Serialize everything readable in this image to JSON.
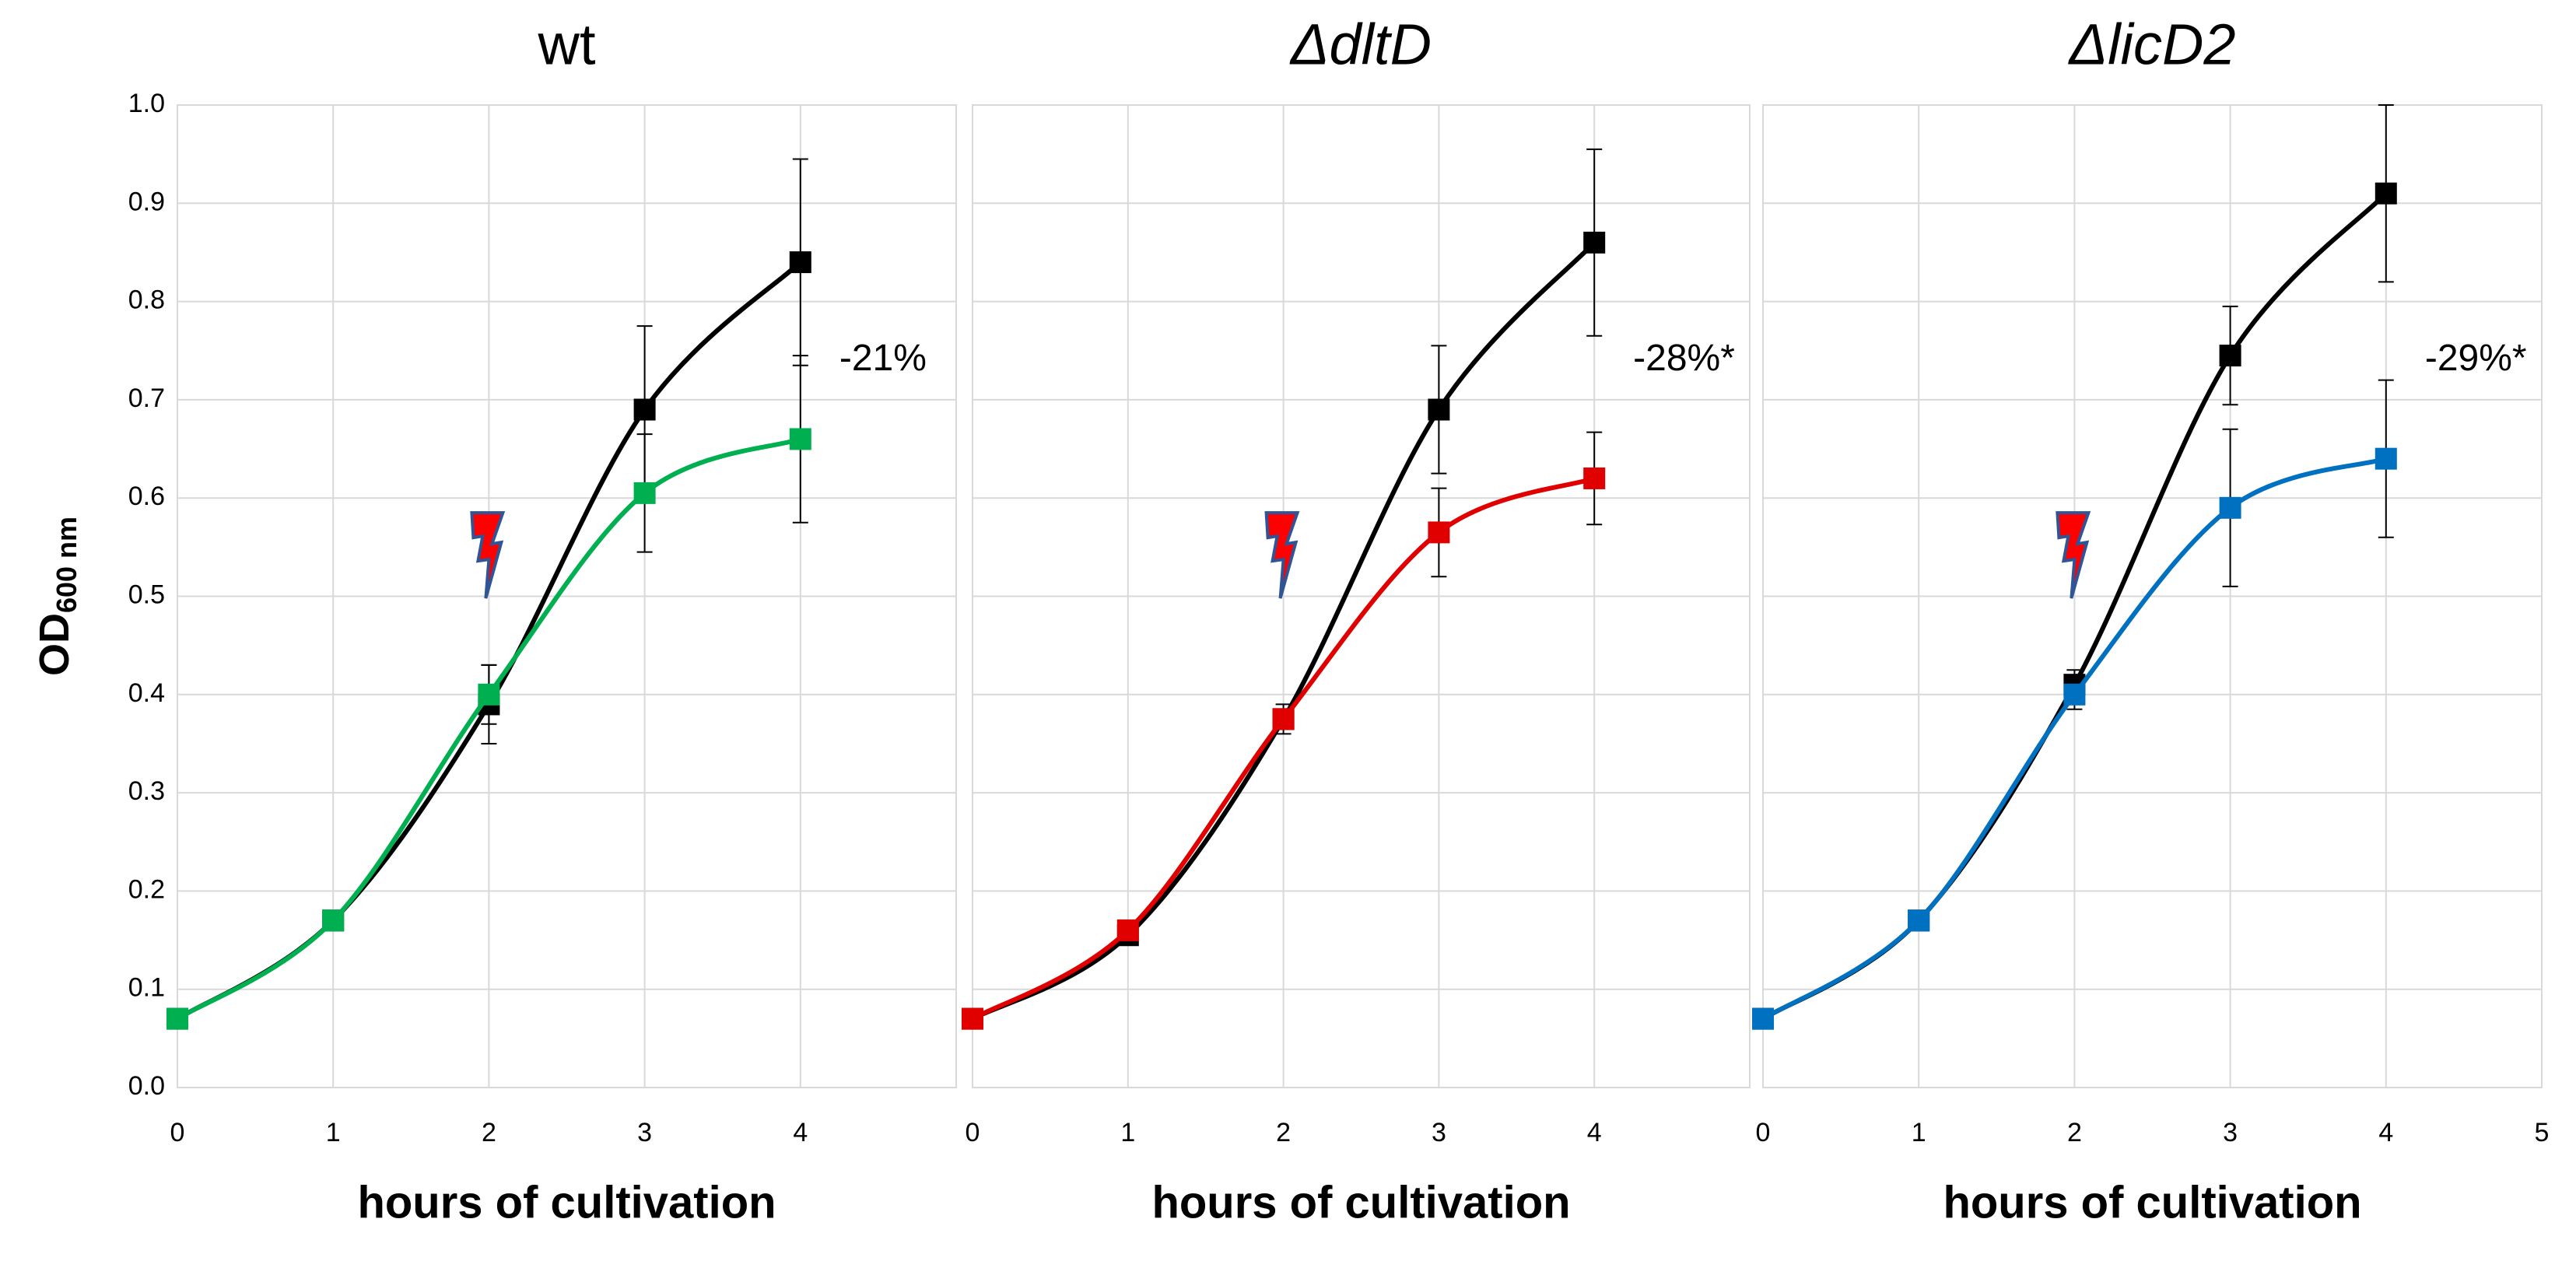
{
  "chart_data": [
    {
      "type": "line",
      "title": "wt",
      "xlabel": "hours of cultivation",
      "ylabel": {
        "main": "OD",
        "sub": "600 nm"
      },
      "x": [
        0,
        1,
        2,
        3,
        4
      ],
      "xlim": [
        0,
        5
      ],
      "xticks": [
        0,
        1,
        2,
        3,
        4
      ],
      "ylim": [
        0,
        1
      ],
      "yticks": [
        {
          "value": 0,
          "label": "0.0"
        },
        0.1,
        0.2,
        0.3,
        0.4,
        0.5,
        0.6,
        0.7,
        0.8,
        0.9,
        {
          "value": 1,
          "label": "1.0"
        }
      ],
      "grid": true,
      "annotation": "-21%",
      "series": [
        {
          "color": "#000000",
          "values": [
            0.07,
            0.17,
            0.39,
            0.69,
            0.84
          ],
          "errors": [
            0,
            0.005,
            0.04,
            0.085,
            0.105
          ]
        },
        {
          "color": "#00b050",
          "values": [
            0.07,
            0.17,
            0.4,
            0.605,
            0.66
          ],
          "errors": [
            0,
            0.005,
            0.03,
            0.06,
            0.085
          ]
        }
      ]
    },
    {
      "type": "line",
      "title": "ΔdltD",
      "xlabel": "hours of cultivation",
      "x": [
        0,
        1,
        2,
        3,
        4
      ],
      "xlim": [
        0,
        5
      ],
      "xticks": [
        0,
        1,
        2,
        3,
        4
      ],
      "ylim": [
        0,
        1
      ],
      "grid": true,
      "annotation": "-28%*",
      "series": [
        {
          "color": "#000000",
          "values": [
            0.07,
            0.155,
            0.375,
            0.69,
            0.86
          ],
          "errors": [
            0,
            0.01,
            0.015,
            0.065,
            0.095
          ]
        },
        {
          "color": "#e00000",
          "values": [
            0.07,
            0.16,
            0.375,
            0.565,
            0.62
          ],
          "errors": [
            0,
            0.01,
            0.01,
            0.045,
            0.047
          ]
        }
      ]
    },
    {
      "type": "line",
      "title": "ΔlicD2",
      "xlabel": "hours of cultivation",
      "x": [
        0,
        1,
        2,
        3,
        4
      ],
      "xlim": [
        0,
        5
      ],
      "xticks": [
        0,
        1,
        2,
        3,
        4,
        5
      ],
      "ylim": [
        0,
        1
      ],
      "grid": true,
      "annotation": "-29%*",
      "series": [
        {
          "color": "#000000",
          "values": [
            0.07,
            0.17,
            0.41,
            0.745,
            0.91
          ],
          "errors": [
            0,
            0.005,
            0.015,
            0.05,
            0.09
          ]
        },
        {
          "color": "#0070c0",
          "values": [
            0.07,
            0.17,
            0.4,
            0.59,
            0.64
          ],
          "errors": [
            0,
            0.005,
            0.015,
            0.08,
            0.08
          ]
        }
      ]
    }
  ]
}
